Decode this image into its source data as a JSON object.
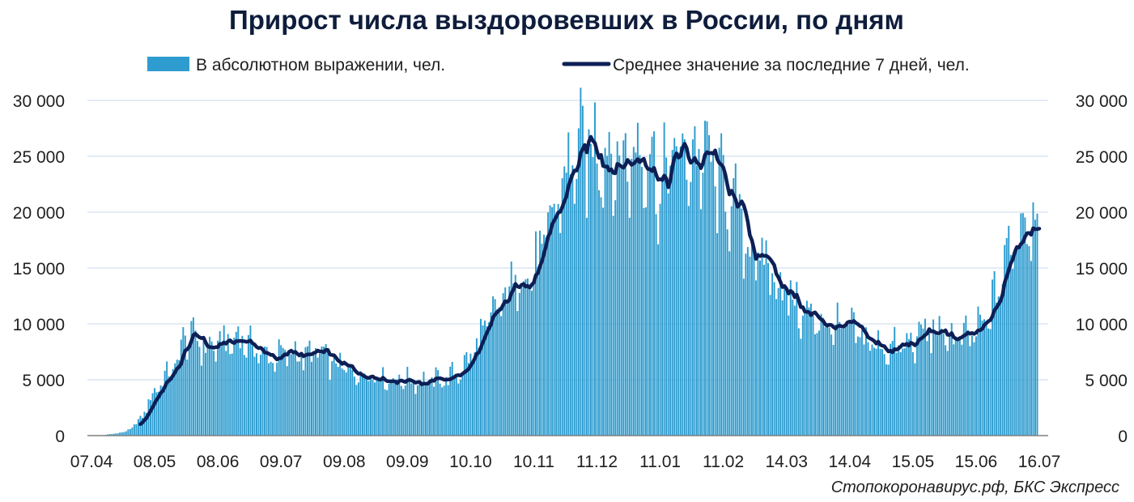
{
  "chart_data": {
    "type": "bar",
    "title": "Прирост числа выздоровевших в России, по дням",
    "source": "Стопокоронавирус.рф, БКС Экспресс",
    "ylim": [
      0,
      30000
    ],
    "y_ticks": [
      "0",
      "5 000",
      "10 000",
      "15 000",
      "20 000",
      "25 000",
      "30 000"
    ],
    "y_tick_values": [
      0,
      5000,
      10000,
      15000,
      20000,
      25000,
      30000
    ],
    "x_ticks": [
      "07.04",
      "08.05",
      "08.06",
      "09.07",
      "09.08",
      "09.09",
      "10.10",
      "10.11",
      "11.12",
      "11.01",
      "11.02",
      "14.03",
      "14.04",
      "15.05",
      "15.06",
      "16.07"
    ],
    "x_tick_days": [
      0,
      31,
      62,
      93,
      124,
      155,
      186,
      217,
      248,
      279,
      310,
      341,
      372,
      403,
      434,
      465
    ],
    "x_days": 466,
    "grid": true,
    "legend_position": "top",
    "colors": {
      "bars": "#2e9ccf",
      "line": "#0d1f55",
      "grid": "#c9d9ea",
      "axis": "#808080"
    },
    "series": [
      {
        "name": "В абсолютном выражении, чел.",
        "type": "bar",
        "anchor_days": [
          0,
          5,
          8,
          12,
          16,
          20,
          24,
          27,
          31,
          35,
          38,
          42,
          45,
          48,
          52,
          55,
          58,
          62,
          65,
          68,
          72,
          75,
          78,
          82,
          86,
          90,
          95,
          100,
          105,
          110,
          118,
          124,
          130,
          138,
          145,
          150,
          155,
          162,
          170,
          176,
          182,
          186,
          190,
          195,
          200,
          205,
          210,
          213,
          217,
          220,
          224,
          228,
          232,
          236,
          240,
          244,
          248,
          251,
          254,
          257,
          260,
          263,
          266,
          269,
          272,
          276,
          279,
          282,
          285,
          288,
          292,
          296,
          300,
          304,
          308,
          312,
          316,
          320,
          324,
          328,
          332,
          336,
          340,
          344,
          348,
          352,
          356,
          360,
          364,
          368,
          372,
          376,
          380,
          385,
          390,
          395,
          400,
          404,
          408,
          412,
          416,
          420,
          424,
          428,
          432,
          436,
          440,
          443,
          446,
          450,
          454,
          458,
          462,
          465
        ],
        "anchor_values": [
          0,
          0,
          100,
          200,
          300,
          700,
          1500,
          2500,
          4000,
          5000,
          5500,
          6500,
          8500,
          9000,
          8500,
          8000,
          7800,
          8000,
          8500,
          8000,
          9000,
          8500,
          8000,
          7500,
          7000,
          7000,
          7200,
          7500,
          7000,
          7500,
          6500,
          6000,
          5500,
          5500,
          5000,
          5000,
          5000,
          4800,
          5000,
          5200,
          6000,
          7000,
          8500,
          10000,
          11500,
          13000,
          14500,
          14500,
          14500,
          16000,
          18000,
          20500,
          23000,
          24500,
          25000,
          25500,
          25500,
          26000,
          25000,
          24500,
          24500,
          24500,
          25000,
          25500,
          26000,
          24000,
          22000,
          23000,
          25500,
          25000,
          24500,
          25000,
          25000,
          24000,
          22500,
          21500,
          20000,
          18000,
          16500,
          15500,
          15000,
          14000,
          13000,
          12000,
          11000,
          10500,
          10500,
          10000,
          9500,
          9500,
          9500,
          9000,
          8500,
          8000,
          7800,
          7800,
          8000,
          8500,
          9200,
          9300,
          9000,
          8800,
          8700,
          8500,
          9000,
          9500,
          10500,
          12000,
          14000,
          16500,
          18500,
          19500,
          20000,
          20500
        ],
        "spread": 0.16,
        "bar_end_day": 464
      },
      {
        "name": "Среднее значение за последние 7 дней, чел.",
        "type": "line",
        "start_day": 24,
        "end_day": 465
      }
    ]
  }
}
